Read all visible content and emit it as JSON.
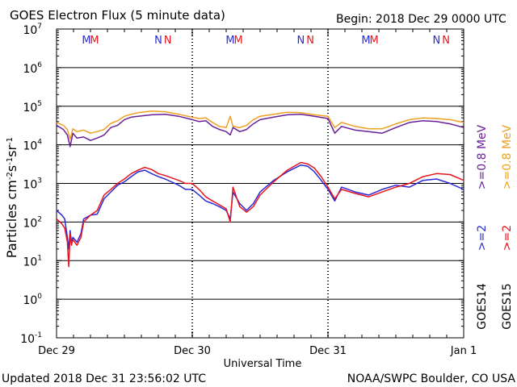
{
  "header": {
    "title": "GOES Electron Flux (5 minute data)",
    "begin": "Begin: 2018 Dec 29 0000 UTC"
  },
  "footer": {
    "updated": "Updated 2018 Dec 31 23:56:02 UTC",
    "credit": "NOAA/SWPC Boulder, CO USA"
  },
  "colors": {
    "goes14": "#2a2ad8",
    "goes15": "#e8141e",
    "e_0_8_goes14": "#6a1f9a",
    "e_0_8_goes15": "#f0a020"
  },
  "chart_data": {
    "type": "line",
    "y_scale": "log",
    "ylim": [
      0.1,
      10000000
    ],
    "xlim": [
      "2018-12-29 00:00",
      "2019-01-01 00:00"
    ],
    "ylabel": "Particles cm-2s-1sr-1",
    "xlabel": "Universal Time",
    "x_ticks": [
      "Dec 29",
      "Dec 30",
      "Dec 31",
      "Jan 1"
    ],
    "y_ticks": [
      {
        "value": 10000000,
        "base": "10",
        "exp": "7"
      },
      {
        "value": 1000000,
        "base": "10",
        "exp": "6"
      },
      {
        "value": 100000,
        "base": "10",
        "exp": "5"
      },
      {
        "value": 10000,
        "base": "10",
        "exp": "4"
      },
      {
        "value": 1000,
        "base": "10",
        "exp": "3"
      },
      {
        "value": 100,
        "base": "10",
        "exp": "2"
      },
      {
        "value": 10,
        "base": "10",
        "exp": "1"
      },
      {
        "value": 1,
        "base": "10",
        "exp": "0"
      },
      {
        "value": 0.1,
        "base": "10",
        "exp": "-1"
      }
    ],
    "threshold": 1000,
    "annotations": [
      {
        "label": "M",
        "day": 0.22,
        "series": "goes14"
      },
      {
        "label": "M",
        "day": 0.28,
        "series": "goes15"
      },
      {
        "label": "N",
        "day": 0.75,
        "series": "goes14"
      },
      {
        "label": "N",
        "day": 0.82,
        "series": "goes15"
      },
      {
        "label": "M",
        "day": 1.28,
        "series": "goes14"
      },
      {
        "label": "M",
        "day": 1.34,
        "series": "goes15"
      },
      {
        "label": "N",
        "day": 1.8,
        "series": "goes14"
      },
      {
        "label": "N",
        "day": 1.87,
        "series": "goes15"
      },
      {
        "label": "M",
        "day": 2.28,
        "series": "goes14"
      },
      {
        "label": "M",
        "day": 2.34,
        "series": "goes15"
      },
      {
        "label": "N",
        "day": 2.8,
        "series": "goes14"
      },
      {
        "label": "N",
        "day": 2.87,
        "series": "goes15"
      }
    ],
    "legend": [
      {
        "text": ">=0.8  MeV",
        "series": "e_0_8_goes14"
      },
      {
        "text": ">=0.8  MeV",
        "series": "e_0_8_goes15"
      },
      {
        "text": ">=2",
        "series": "goes14"
      },
      {
        "text": ">=2",
        "series": "goes15"
      },
      {
        "text": "GOES14",
        "series": ""
      },
      {
        "text": "GOES15",
        "series": ""
      }
    ],
    "series": [
      {
        "id": "e_0_8_goes14",
        "x": [
          0,
          0.05,
          0.08,
          0.1,
          0.12,
          0.15,
          0.2,
          0.25,
          0.3,
          0.35,
          0.4,
          0.45,
          0.5,
          0.55,
          0.6,
          0.7,
          0.8,
          0.9,
          1.0,
          1.05,
          1.1,
          1.15,
          1.2,
          1.25,
          1.28,
          1.3,
          1.35,
          1.4,
          1.45,
          1.5,
          1.6,
          1.7,
          1.8,
          1.9,
          2.0,
          2.05,
          2.1,
          2.2,
          2.3,
          2.4,
          2.5,
          2.6,
          2.7,
          2.8,
          2.9,
          3.0
        ],
        "y": [
          32000,
          25000,
          18000,
          9000,
          20000,
          15000,
          16000,
          13000,
          15000,
          18000,
          28000,
          32000,
          45000,
          52000,
          55000,
          60000,
          62000,
          55000,
          45000,
          40000,
          42000,
          30000,
          25000,
          22000,
          18000,
          28000,
          22000,
          25000,
          35000,
          45000,
          52000,
          60000,
          62000,
          55000,
          48000,
          20000,
          30000,
          24000,
          22000,
          20000,
          28000,
          38000,
          42000,
          40000,
          35000,
          28000
        ]
      },
      {
        "id": "e_0_8_goes15",
        "x": [
          0,
          0.05,
          0.08,
          0.1,
          0.12,
          0.15,
          0.2,
          0.25,
          0.3,
          0.35,
          0.4,
          0.45,
          0.5,
          0.55,
          0.6,
          0.7,
          0.8,
          0.9,
          1.0,
          1.05,
          1.1,
          1.15,
          1.2,
          1.25,
          1.28,
          1.3,
          1.35,
          1.4,
          1.45,
          1.5,
          1.6,
          1.7,
          1.8,
          1.9,
          2.0,
          2.05,
          2.1,
          2.2,
          2.3,
          2.4,
          2.5,
          2.6,
          2.7,
          2.8,
          2.9,
          3.0
        ],
        "y": [
          38000,
          32000,
          25000,
          14000,
          26000,
          22000,
          24000,
          20000,
          22000,
          25000,
          36000,
          42000,
          55000,
          62000,
          68000,
          75000,
          72000,
          62000,
          52000,
          48000,
          50000,
          38000,
          30000,
          28000,
          55000,
          30000,
          28000,
          32000,
          45000,
          55000,
          62000,
          70000,
          68000,
          60000,
          55000,
          28000,
          38000,
          30000,
          26000,
          26000,
          35000,
          45000,
          50000,
          48000,
          45000,
          38000
        ]
      },
      {
        "id": "goes14",
        "x": [
          0,
          0.04,
          0.06,
          0.08,
          0.09,
          0.1,
          0.11,
          0.12,
          0.15,
          0.18,
          0.2,
          0.25,
          0.3,
          0.35,
          0.4,
          0.45,
          0.5,
          0.55,
          0.6,
          0.65,
          0.7,
          0.75,
          0.8,
          0.9,
          0.95,
          1.0,
          1.05,
          1.1,
          1.15,
          1.2,
          1.25,
          1.28,
          1.3,
          1.35,
          1.4,
          1.45,
          1.5,
          1.6,
          1.7,
          1.8,
          1.85,
          1.9,
          1.95,
          2.0,
          2.05,
          2.1,
          2.2,
          2.3,
          2.4,
          2.5,
          2.6,
          2.7,
          2.8,
          2.9,
          3.0
        ],
        "y": [
          200,
          150,
          120,
          40,
          20,
          60,
          30,
          40,
          30,
          50,
          120,
          150,
          160,
          400,
          600,
          900,
          1100,
          1500,
          2000,
          2200,
          1800,
          1500,
          1300,
          900,
          700,
          700,
          500,
          350,
          300,
          250,
          200,
          120,
          600,
          300,
          200,
          300,
          600,
          1200,
          2000,
          3000,
          2800,
          2000,
          1200,
          700,
          350,
          800,
          600,
          500,
          700,
          900,
          800,
          1200,
          1300,
          1000,
          700
        ]
      },
      {
        "id": "goes15",
        "x": [
          0,
          0.04,
          0.06,
          0.08,
          0.09,
          0.1,
          0.11,
          0.12,
          0.15,
          0.18,
          0.2,
          0.25,
          0.3,
          0.35,
          0.4,
          0.45,
          0.5,
          0.55,
          0.6,
          0.65,
          0.7,
          0.75,
          0.8,
          0.9,
          0.95,
          1.0,
          1.05,
          1.1,
          1.15,
          1.2,
          1.25,
          1.28,
          1.3,
          1.35,
          1.4,
          1.45,
          1.5,
          1.6,
          1.7,
          1.8,
          1.85,
          1.9,
          1.95,
          2.0,
          2.05,
          2.1,
          2.2,
          2.3,
          2.4,
          2.5,
          2.6,
          2.7,
          2.8,
          2.9,
          3.0
        ],
        "y": [
          120,
          90,
          70,
          30,
          7,
          50,
          25,
          35,
          25,
          40,
          100,
          150,
          200,
          500,
          700,
          1000,
          1300,
          1800,
          2200,
          2600,
          2300,
          1800,
          1600,
          1200,
          1000,
          1000,
          700,
          450,
          350,
          280,
          220,
          100,
          800,
          250,
          180,
          250,
          500,
          1100,
          2200,
          3500,
          3200,
          2500,
          1500,
          800,
          400,
          700,
          550,
          450,
          600,
          800,
          1000,
          1500,
          1800,
          1700,
          1200
        ]
      }
    ]
  }
}
